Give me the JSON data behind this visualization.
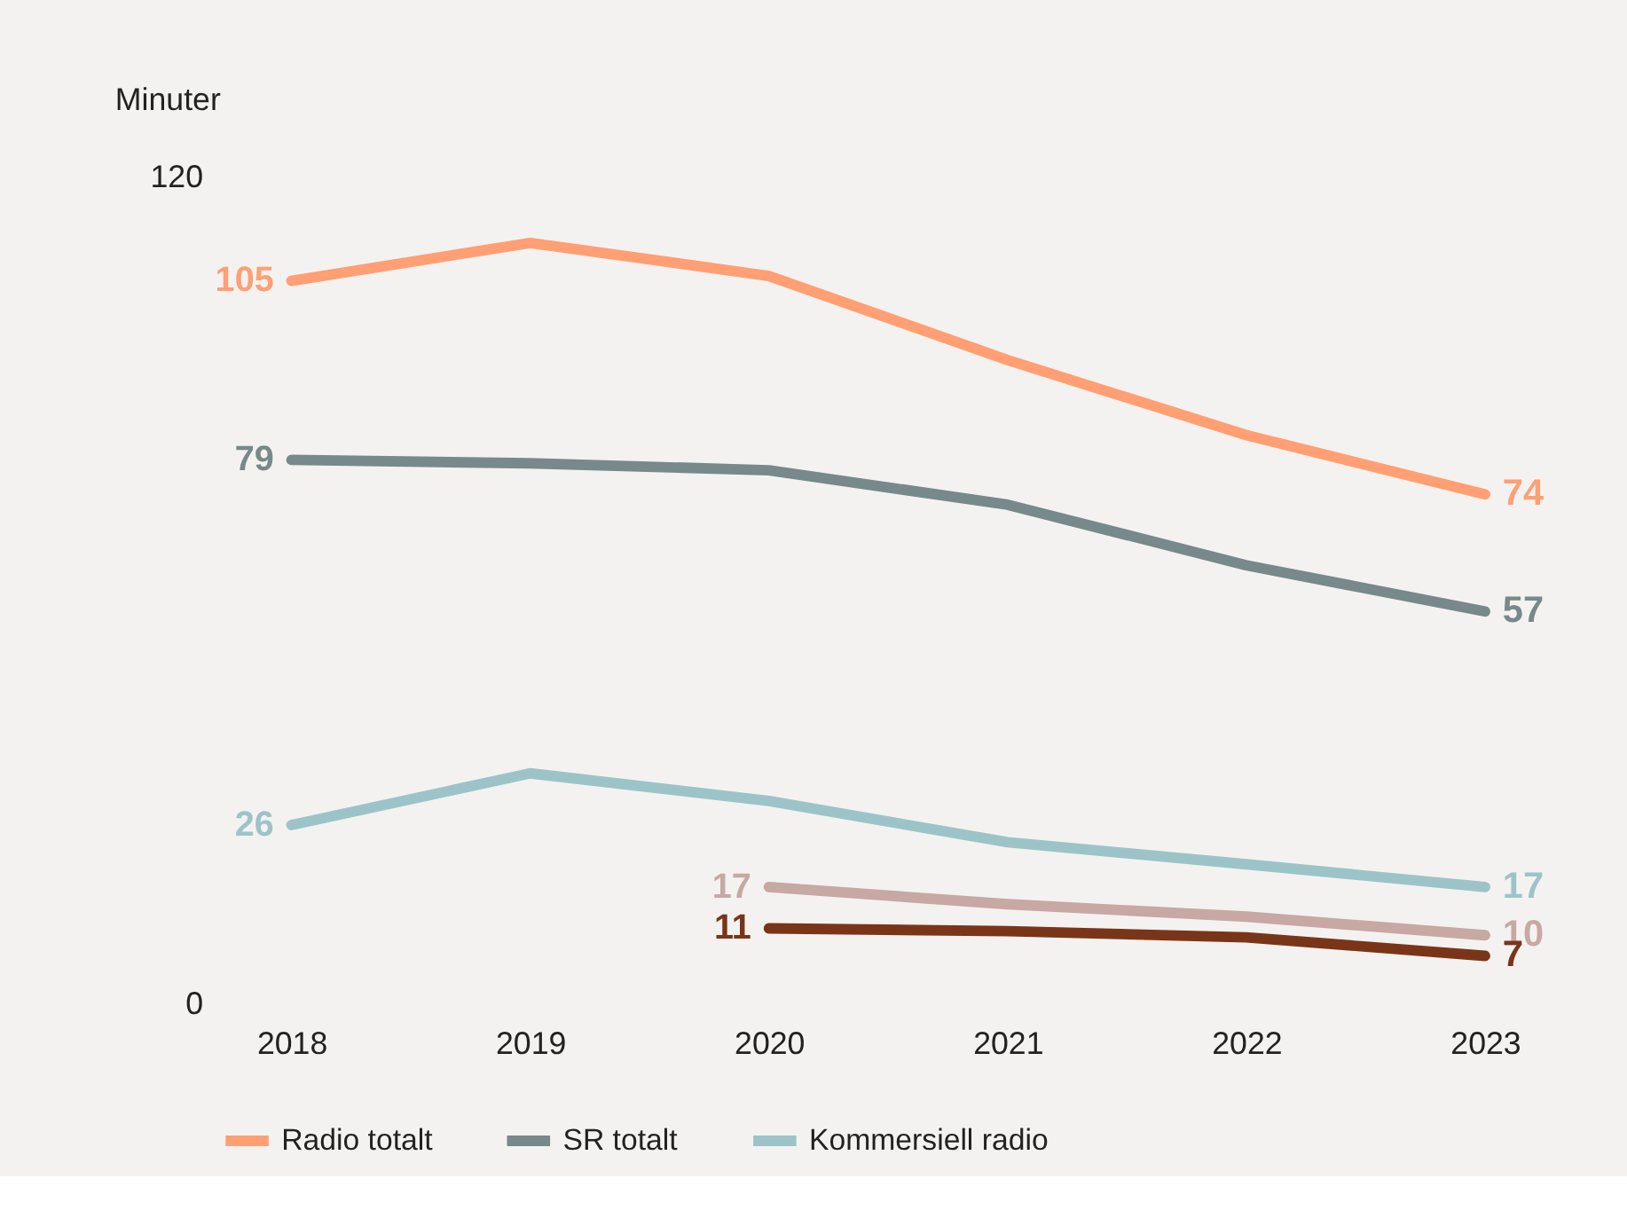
{
  "chart_data": {
    "type": "line",
    "ylabel": "Minuter",
    "categories": [
      "2018",
      "2019",
      "2020",
      "2021",
      "2022",
      "2023"
    ],
    "ylim": [
      0,
      120
    ],
    "yticks": [
      0,
      120
    ],
    "grid": false,
    "legend": "bottom",
    "line_style": "solid",
    "marker": "none",
    "series": [
      {
        "name": "Radio totalt",
        "color": "#ff9f73",
        "values": [
          105,
          110.5,
          105.7,
          93.5,
          82.6,
          74
        ],
        "value_labels": [
          "105",
          null,
          null,
          null,
          null,
          "74"
        ]
      },
      {
        "name": "SR totalt",
        "color": "#77898a",
        "values": [
          79,
          78.5,
          77.5,
          72.5,
          63.7,
          57
        ],
        "value_labels": [
          "79",
          null,
          null,
          null,
          null,
          "57"
        ]
      },
      {
        "name": "Kommersiell radio",
        "color": "#9cc4c8",
        "values": [
          26,
          33.5,
          29.5,
          23.5,
          20.3,
          17
        ],
        "value_labels": [
          "26",
          null,
          null,
          null,
          null,
          "17"
        ]
      },
      {
        "color": "#c7a8a3",
        "values": [
          null,
          null,
          17,
          14.5,
          12.7,
          10
        ],
        "value_labels": [
          null,
          null,
          "17",
          null,
          null,
          "10"
        ]
      },
      {
        "color": "#7a3518",
        "values": [
          null,
          null,
          11,
          10.6,
          9.7,
          7
        ],
        "value_labels": [
          null,
          null,
          "11",
          null,
          null,
          "7"
        ]
      }
    ]
  }
}
